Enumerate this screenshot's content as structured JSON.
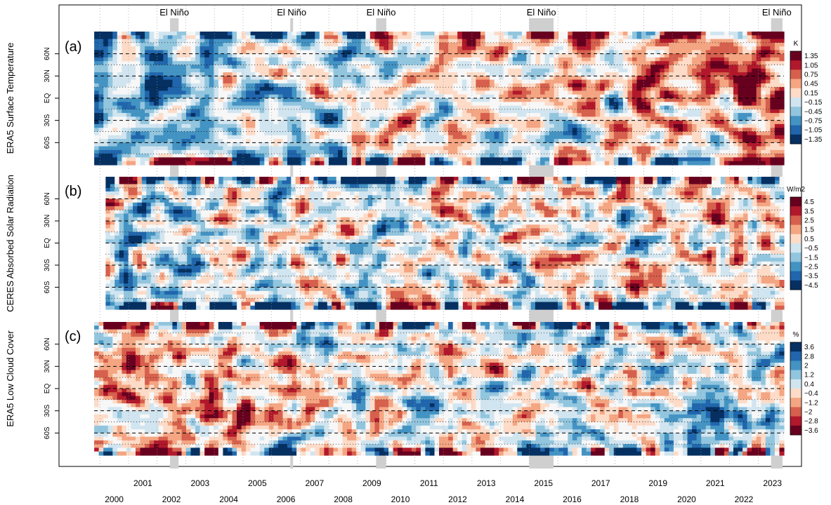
{
  "chart_data": {
    "type": "heatmap",
    "x_range": [
      1999.7,
      2023.9
    ],
    "year_labels_upper": [
      "2001",
      "2003",
      "2005",
      "2007",
      "2009",
      "2011",
      "2013",
      "2015",
      "2017",
      "2019",
      "2021",
      "2023"
    ],
    "year_labels_lower": [
      "2000",
      "2002",
      "2004",
      "2006",
      "2008",
      "2010",
      "2012",
      "2014",
      "2016",
      "2018",
      "2020",
      "2022"
    ],
    "el_nino_events": [
      {
        "label": "El Niño",
        "start": 2002.45,
        "end": 2002.75
      },
      {
        "label": "El Niño",
        "start": 2006.65,
        "end": 2006.75
      },
      {
        "label": "El Niño",
        "start": 2009.65,
        "end": 2010.0
      },
      {
        "label": "El Niño",
        "start": 2015.0,
        "end": 2015.85
      },
      {
        "label": "El Niño",
        "start": 2023.45,
        "end": 2023.85
      }
    ],
    "lat_ticks": [
      "60N",
      "30N",
      "EQ",
      "30S",
      "60S"
    ],
    "lat_tick_values": [
      60,
      30,
      0,
      -30,
      -60
    ],
    "panels": [
      {
        "tag": "(a)",
        "ylabel": "ERA5 Surface Temperature",
        "unit": "K",
        "legend_labels": [
          "1.35",
          "1.05",
          "0.75",
          "0.45",
          "0.15",
          "−0.15",
          "−0.45",
          "−0.75",
          "−1.05",
          "−1.35"
        ],
        "palette": "red-high",
        "x_start": 1999.8,
        "smooth": 3,
        "trend": 0.09,
        "seed": 11
      },
      {
        "tag": "(b)",
        "ylabel": "CERES Absorbed Solar Radiation",
        "unit": "W/m2",
        "legend_labels": [
          "4.5",
          "3.5",
          "2.5",
          "1.5",
          "0.5",
          "−0.5",
          "−1.5",
          "−2.5",
          "−3.5",
          "−4.5"
        ],
        "palette": "red-high",
        "x_start": 2000.2,
        "smooth": 2,
        "trend": 0.04,
        "seed": 23
      },
      {
        "tag": "(c)",
        "ylabel": "ERA5 Low Cloud Cover",
        "unit": "%",
        "legend_labels": [
          "3.6",
          "2.8",
          "2",
          "1.2",
          "0.4",
          "−0.4",
          "−1.2",
          "−2",
          "−2.8",
          "−3.6"
        ],
        "palette": "blue-high",
        "x_start": 1999.8,
        "smooth": 2,
        "trend": 0.05,
        "seed": 37
      }
    ],
    "colors": {
      "dark_red": "#67001f",
      "red": "#b2182b",
      "light_red": "#d6604d",
      "salmon": "#f4a582",
      "pale_red": "#fddbc7",
      "neutral": "#f7f7f7",
      "pale_blue": "#d1e5f0",
      "light_blue": "#92c5de",
      "blue": "#4393c3",
      "dark_blue": "#2166ac",
      "navy": "#053061",
      "el_nino_band": "#cfcfcf"
    }
  }
}
